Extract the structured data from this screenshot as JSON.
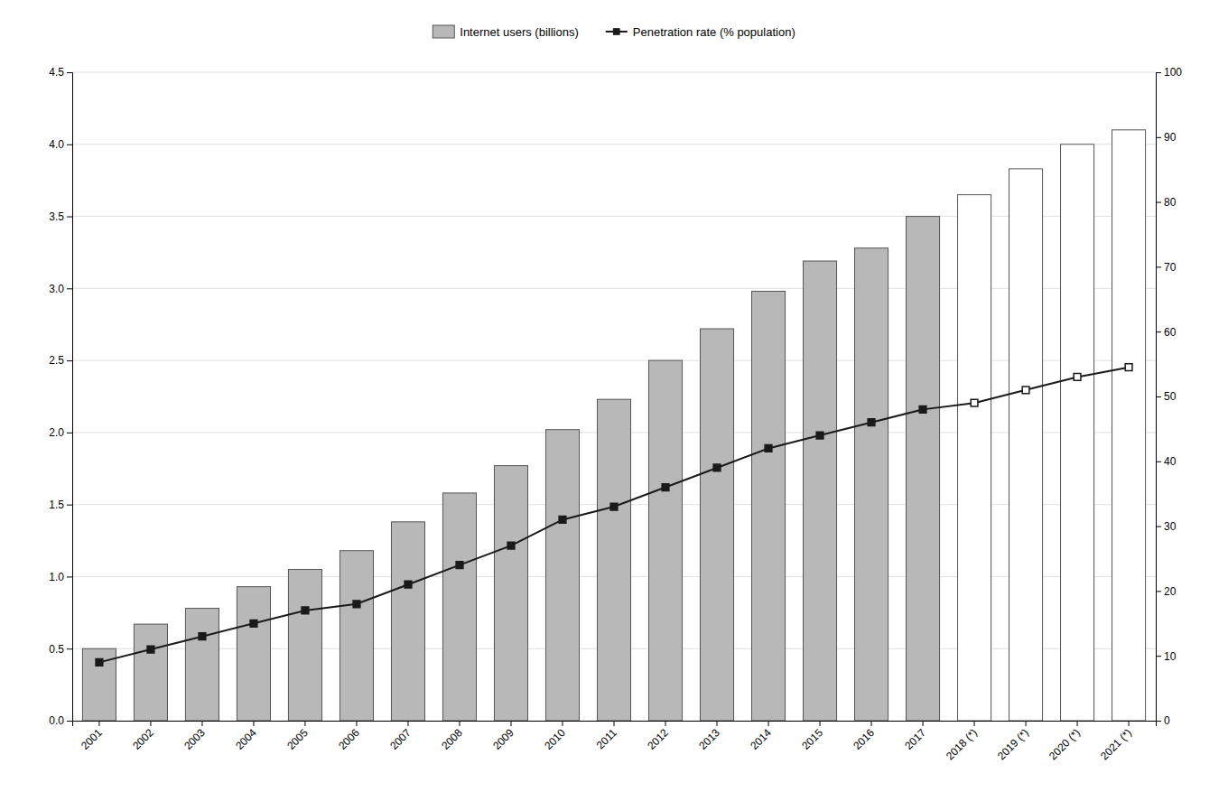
{
  "chart_data": {
    "type": "bar",
    "categories": [
      "2001",
      "2002",
      "2003",
      "2004",
      "2005",
      "2006",
      "2007",
      "2008",
      "2009",
      "2010",
      "2011",
      "2012",
      "2013",
      "2014",
      "2015",
      "2016",
      "2017",
      "2018 (*)",
      "2019 (*)",
      "2020 (*)",
      "2021 (*)"
    ],
    "series": [
      {
        "name": "Internet users (billions)",
        "type": "bar",
        "color": "#b8b8b8",
        "colors": [
          "#b8b8b8",
          "#b8b8b8",
          "#b8b8b8",
          "#b8b8b8",
          "#b8b8b8",
          "#b8b8b8",
          "#b8b8b8",
          "#b8b8b8",
          "#b8b8b8",
          "#b8b8b8",
          "#b8b8b8",
          "#b8b8b8",
          "#b8b8b8",
          "#b8b8b8",
          "#b8b8b8",
          "#b8b8b8",
          "#b8b8b8",
          "#ffffff",
          "#ffffff",
          "#ffffff",
          "#ffffff"
        ],
        "values": [
          0.5,
          0.67,
          0.78,
          0.93,
          1.05,
          1.18,
          1.38,
          1.58,
          1.77,
          2.02,
          2.23,
          2.5,
          2.72,
          2.98,
          3.19,
          3.28,
          3.5,
          3.65,
          3.83,
          4.0,
          4.1
        ]
      },
      {
        "name": "Penetration rate (% population)",
        "type": "line",
        "axis": "y2",
        "color": "#1a1a1a",
        "marker": "square",
        "colors": [
          "#1a1a1a",
          "#1a1a1a",
          "#1a1a1a",
          "#1a1a1a",
          "#1a1a1a",
          "#1a1a1a",
          "#1a1a1a",
          "#1a1a1a",
          "#1a1a1a",
          "#1a1a1a",
          "#1a1a1a",
          "#1a1a1a",
          "#1a1a1a",
          "#1a1a1a",
          "#1a1a1a",
          "#1a1a1a",
          "#1a1a1a",
          "#ffffff",
          "#ffffff",
          "#ffffff",
          "#ffffff"
        ],
        "values": [
          9,
          11,
          13,
          15,
          17,
          18,
          21,
          24,
          27,
          31,
          33,
          36,
          39,
          42,
          44,
          46,
          48,
          49,
          51,
          53,
          54.5
        ]
      }
    ],
    "ylim": [
      0,
      4.5
    ],
    "yticks": [
      {
        "value": 0,
        "label": "0.0"
      },
      0.5,
      {
        "value": 1.0,
        "label": "1.0"
      },
      1.5,
      {
        "value": 2.0,
        "label": "2.0"
      },
      2.5,
      {
        "value": 3.0,
        "label": "3.0"
      },
      3.5,
      {
        "value": 4.0,
        "label": "4.0"
      },
      4.5
    ],
    "y2lim": [
      0,
      100
    ],
    "y2ticks": [
      0,
      10,
      20,
      30,
      40,
      50,
      60,
      70,
      80,
      90,
      100
    ],
    "grid": true,
    "legend": "top"
  }
}
